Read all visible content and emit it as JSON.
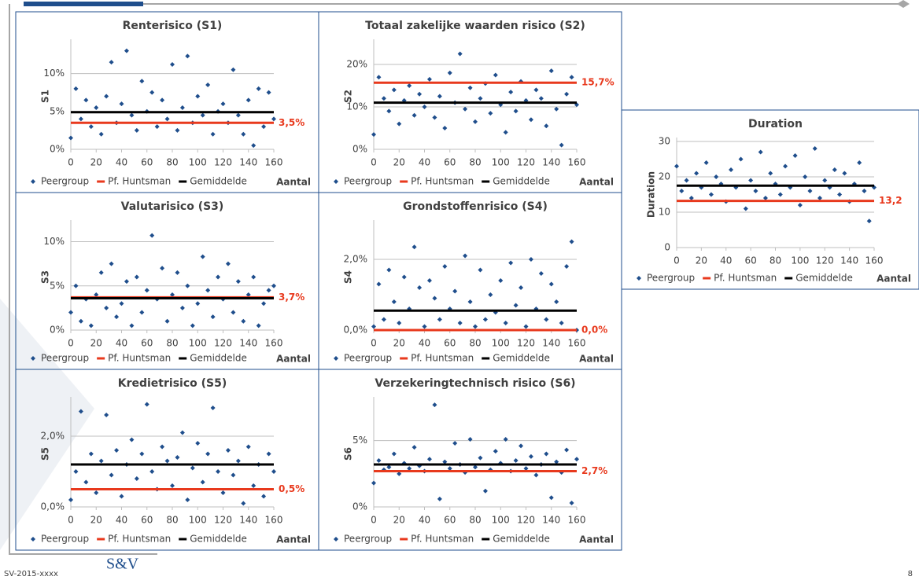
{
  "chart_data": [
    {
      "type": "scatter",
      "title": "Renterisico (S1)",
      "ylabel": "S1",
      "xlabel": "Aantal",
      "xlim": [
        0,
        160
      ],
      "xticks": [
        0,
        20,
        40,
        60,
        80,
        100,
        120,
        140,
        160
      ],
      "ylim": [
        0,
        14
      ],
      "yticks": [
        {
          "value": 0,
          "label": "0%"
        },
        {
          "value": 5,
          "label": "5%"
        },
        {
          "value": 10,
          "label": "10%"
        }
      ],
      "grid": true,
      "x": [
        0,
        4,
        8,
        12,
        16,
        20,
        24,
        28,
        32,
        36,
        40,
        44,
        48,
        52,
        56,
        60,
        64,
        68,
        72,
        76,
        80,
        84,
        88,
        92,
        96,
        100,
        104,
        108,
        112,
        116,
        120,
        124,
        128,
        132,
        136,
        140,
        144,
        148,
        152,
        156,
        160
      ],
      "series": [
        {
          "name": "Peergroup",
          "color": "#1f4e8c",
          "values": [
            1.5,
            8.0,
            4.0,
            6.5,
            3.0,
            5.5,
            2.0,
            7.0,
            11.5,
            3.5,
            6.0,
            13.0,
            4.5,
            2.5,
            9.0,
            5.0,
            7.5,
            3.0,
            6.5,
            4.0,
            11.2,
            2.5,
            5.5,
            12.3,
            3.5,
            7.0,
            4.5,
            8.5,
            2.0,
            5.0,
            6.0,
            3.5,
            10.5,
            4.5,
            2.0,
            6.5,
            0.5,
            8.0,
            3.0,
            7.5,
            4.0
          ]
        },
        {
          "name": "Pf. Huntsman",
          "color": "#e8391d",
          "value": 3.5,
          "value_label": "3,5%"
        },
        {
          "name": "Gemiddelde",
          "color": "#000000",
          "value": 4.9
        }
      ]
    },
    {
      "type": "scatter",
      "title": "Totaal zakelijke waarden risico (S2)",
      "ylabel": "S2",
      "xlabel": "Aantal",
      "xlim": [
        0,
        160
      ],
      "xticks": [
        0,
        20,
        40,
        60,
        80,
        100,
        120,
        140,
        160
      ],
      "ylim": [
        0,
        25
      ],
      "yticks": [
        {
          "value": 0,
          "label": "0%"
        },
        {
          "value": 10,
          "label": "10%"
        },
        {
          "value": 20,
          "label": "20%"
        }
      ],
      "grid": true,
      "x": [
        0,
        4,
        8,
        12,
        16,
        20,
        24,
        28,
        32,
        36,
        40,
        44,
        48,
        52,
        56,
        60,
        64,
        68,
        72,
        76,
        80,
        84,
        88,
        92,
        96,
        100,
        104,
        108,
        112,
        116,
        120,
        124,
        128,
        132,
        136,
        140,
        144,
        148,
        152,
        156,
        160
      ],
      "series": [
        {
          "name": "Peergroup",
          "color": "#1f4e8c",
          "values": [
            3.5,
            17.0,
            12.0,
            9.0,
            14.0,
            6.0,
            11.5,
            15.0,
            8.0,
            13.0,
            10.0,
            16.5,
            7.5,
            12.5,
            5.0,
            18.0,
            11.0,
            22.5,
            9.5,
            14.5,
            6.5,
            12.0,
            15.5,
            8.5,
            17.5,
            10.5,
            4.0,
            13.5,
            9.0,
            16.0,
            11.5,
            7.0,
            14.0,
            12.0,
            5.5,
            18.5,
            9.5,
            1.0,
            13.0,
            17.0,
            10.5
          ]
        },
        {
          "name": "Pf. Huntsman",
          "color": "#e8391d",
          "value": 15.7,
          "value_label": "15,7%"
        },
        {
          "name": "Gemiddelde",
          "color": "#000000",
          "value": 11.0
        }
      ]
    },
    {
      "type": "scatter",
      "title": "Valutarisico (S3)",
      "ylabel": "S3",
      "xlabel": "Aantal",
      "xlim": [
        0,
        160
      ],
      "xticks": [
        0,
        20,
        40,
        60,
        80,
        100,
        120,
        140,
        160
      ],
      "ylim": [
        0,
        12
      ],
      "yticks": [
        {
          "value": 0,
          "label": "0%"
        },
        {
          "value": 5,
          "label": "5%"
        },
        {
          "value": 10,
          "label": "10%"
        }
      ],
      "grid": true,
      "x": [
        0,
        4,
        8,
        12,
        16,
        20,
        24,
        28,
        32,
        36,
        40,
        44,
        48,
        52,
        56,
        60,
        64,
        68,
        72,
        76,
        80,
        84,
        88,
        92,
        96,
        100,
        104,
        108,
        112,
        116,
        120,
        124,
        128,
        132,
        136,
        140,
        144,
        148,
        152,
        156,
        160
      ],
      "series": [
        {
          "name": "Peergroup",
          "color": "#1f4e8c",
          "values": [
            2.0,
            5.0,
            1.0,
            3.5,
            0.5,
            4.0,
            6.5,
            2.5,
            7.5,
            1.5,
            3.0,
            5.5,
            0.5,
            6.0,
            2.0,
            4.5,
            10.7,
            3.5,
            7.0,
            1.0,
            4.0,
            6.5,
            2.5,
            5.0,
            0.5,
            3.0,
            8.3,
            4.5,
            1.5,
            6.0,
            3.5,
            7.5,
            2.0,
            5.5,
            1.0,
            4.0,
            6.0,
            0.5,
            3.0,
            4.5,
            5.0
          ]
        },
        {
          "name": "Pf. Huntsman",
          "color": "#e8391d",
          "value": 3.7,
          "value_label": "3,7%"
        },
        {
          "name": "Gemiddelde",
          "color": "#000000",
          "value": 3.6
        }
      ]
    },
    {
      "type": "scatter",
      "title": "Grondstoffenrisico (S4)",
      "ylabel": "S4",
      "xlabel": "Aantal",
      "xlim": [
        0,
        160
      ],
      "xticks": [
        0,
        20,
        40,
        60,
        80,
        100,
        120,
        140,
        160
      ],
      "ylim": [
        0,
        3
      ],
      "yticks": [
        {
          "value": 0,
          "label": "0,0%"
        },
        {
          "value": 2,
          "label": "2,0%"
        }
      ],
      "grid": true,
      "x": [
        0,
        4,
        8,
        12,
        16,
        20,
        24,
        28,
        32,
        36,
        40,
        44,
        48,
        52,
        56,
        60,
        64,
        68,
        72,
        76,
        80,
        84,
        88,
        92,
        96,
        100,
        104,
        108,
        112,
        116,
        120,
        124,
        128,
        132,
        136,
        140,
        144,
        148,
        152,
        156,
        160
      ],
      "series": [
        {
          "name": "Peergroup",
          "color": "#1f4e8c",
          "values": [
            0.1,
            1.3,
            0.3,
            1.7,
            0.8,
            0.2,
            1.5,
            0.6,
            2.35,
            1.2,
            0.1,
            1.4,
            0.9,
            0.3,
            1.8,
            0.6,
            1.1,
            0.2,
            2.1,
            0.8,
            0.1,
            1.7,
            0.3,
            1.0,
            0.5,
            1.4,
            0.2,
            1.9,
            0.7,
            1.2,
            0.1,
            2.0,
            0.6,
            1.6,
            0.3,
            1.3,
            0.8,
            0.2,
            1.8,
            2.5,
            0.0
          ]
        },
        {
          "name": "Pf. Huntsman",
          "color": "#e8391d",
          "value": 0.0,
          "value_label": "0,0%"
        },
        {
          "name": "Gemiddelde",
          "color": "#000000",
          "value": 0.55
        }
      ]
    },
    {
      "type": "scatter",
      "title": "Kredietrisico (S5)",
      "ylabel": "S5",
      "xlabel": "Aantal",
      "xlim": [
        0,
        160
      ],
      "xticks": [
        0,
        20,
        40,
        60,
        80,
        100,
        120,
        140,
        160
      ],
      "ylim": [
        0,
        3
      ],
      "yticks": [
        {
          "value": 0,
          "label": "0,0%"
        },
        {
          "value": 2,
          "label": "2,0%"
        }
      ],
      "grid": true,
      "x": [
        0,
        4,
        8,
        12,
        16,
        20,
        24,
        28,
        32,
        36,
        40,
        44,
        48,
        52,
        56,
        60,
        64,
        68,
        72,
        76,
        80,
        84,
        88,
        92,
        96,
        100,
        104,
        108,
        112,
        116,
        120,
        124,
        128,
        132,
        136,
        140,
        144,
        148,
        152,
        156,
        160
      ],
      "series": [
        {
          "name": "Peergroup",
          "color": "#1f4e8c",
          "values": [
            0.2,
            1.0,
            2.7,
            0.7,
            1.5,
            0.4,
            1.3,
            2.6,
            0.9,
            1.6,
            0.3,
            1.2,
            1.9,
            0.8,
            1.5,
            2.9,
            1.0,
            0.5,
            1.7,
            1.3,
            0.6,
            1.4,
            2.1,
            0.2,
            1.1,
            1.8,
            0.7,
            1.5,
            2.8,
            1.0,
            0.4,
            1.6,
            0.9,
            1.3,
            0.1,
            1.7,
            0.6,
            1.2,
            0.3,
            1.5,
            1.0
          ]
        },
        {
          "name": "Pf. Huntsman",
          "color": "#e8391d",
          "value": 0.5,
          "value_label": "0,5%"
        },
        {
          "name": "Gemiddelde",
          "color": "#000000",
          "value": 1.2
        }
      ]
    },
    {
      "type": "scatter",
      "title": "Verzekeringtechnisch risico (S6)",
      "ylabel": "S6",
      "xlabel": "Aantal",
      "xlim": [
        0,
        160
      ],
      "xticks": [
        0,
        20,
        40,
        60,
        80,
        100,
        120,
        140,
        160
      ],
      "ylim": [
        0,
        8
      ],
      "yticks": [
        {
          "value": 0,
          "label": "0%"
        },
        {
          "value": 5,
          "label": "5%"
        }
      ],
      "grid": true,
      "x": [
        0,
        4,
        8,
        12,
        16,
        20,
        24,
        28,
        32,
        36,
        40,
        44,
        48,
        52,
        56,
        60,
        64,
        68,
        72,
        76,
        80,
        84,
        88,
        92,
        96,
        100,
        104,
        108,
        112,
        116,
        120,
        124,
        128,
        132,
        136,
        140,
        144,
        148,
        152,
        156,
        160
      ],
      "series": [
        {
          "name": "Peergroup",
          "color": "#1f4e8c",
          "values": [
            1.8,
            3.5,
            2.8,
            3.0,
            4.0,
            2.5,
            3.3,
            2.9,
            4.5,
            3.1,
            2.7,
            3.6,
            7.7,
            0.6,
            3.4,
            2.9,
            4.8,
            3.2,
            2.6,
            5.1,
            3.0,
            3.7,
            1.2,
            2.8,
            4.2,
            3.3,
            5.1,
            2.7,
            3.5,
            4.6,
            2.9,
            3.8,
            2.4,
            3.2,
            4.0,
            0.7,
            3.4,
            2.6,
            4.3,
            0.3,
            3.6
          ]
        },
        {
          "name": "Pf. Huntsman",
          "color": "#e8391d",
          "value": 2.7,
          "value_label": "2,7%"
        },
        {
          "name": "Gemiddelde",
          "color": "#000000",
          "value": 3.2
        }
      ]
    },
    {
      "type": "scatter",
      "title": "Duration",
      "ylabel": "Duration",
      "xlabel": "Aantal",
      "xlim": [
        0,
        160
      ],
      "xticks": [
        0,
        20,
        40,
        60,
        80,
        100,
        120,
        140,
        160
      ],
      "ylim": [
        0,
        30
      ],
      "yticks": [
        0,
        10,
        20,
        30
      ],
      "grid": true,
      "x": [
        0,
        4,
        8,
        12,
        16,
        20,
        24,
        28,
        32,
        36,
        40,
        44,
        48,
        52,
        56,
        60,
        64,
        68,
        72,
        76,
        80,
        84,
        88,
        92,
        96,
        100,
        104,
        108,
        112,
        116,
        120,
        124,
        128,
        132,
        136,
        140,
        144,
        148,
        152,
        156,
        160
      ],
      "series": [
        {
          "name": "Peergroup",
          "color": "#1f4e8c",
          "values": [
            23,
            16,
            19,
            14,
            21,
            17,
            24,
            15,
            20,
            18,
            13,
            22,
            17,
            25,
            11,
            19,
            16,
            27,
            14,
            21,
            18,
            15,
            23,
            17,
            26,
            12,
            20,
            16,
            28,
            14,
            19,
            17,
            22,
            15,
            21,
            13,
            18,
            24,
            16,
            7.5,
            17
          ]
        },
        {
          "name": "Pf. Huntsman",
          "color": "#e8391d",
          "value": 13.2,
          "value_label": "13,2"
        },
        {
          "name": "Gemiddelde",
          "color": "#000000",
          "value": 17.5
        }
      ]
    }
  ],
  "footer": {
    "code": "SV-2015-xxxx",
    "logo": "S&V",
    "page": "8"
  }
}
